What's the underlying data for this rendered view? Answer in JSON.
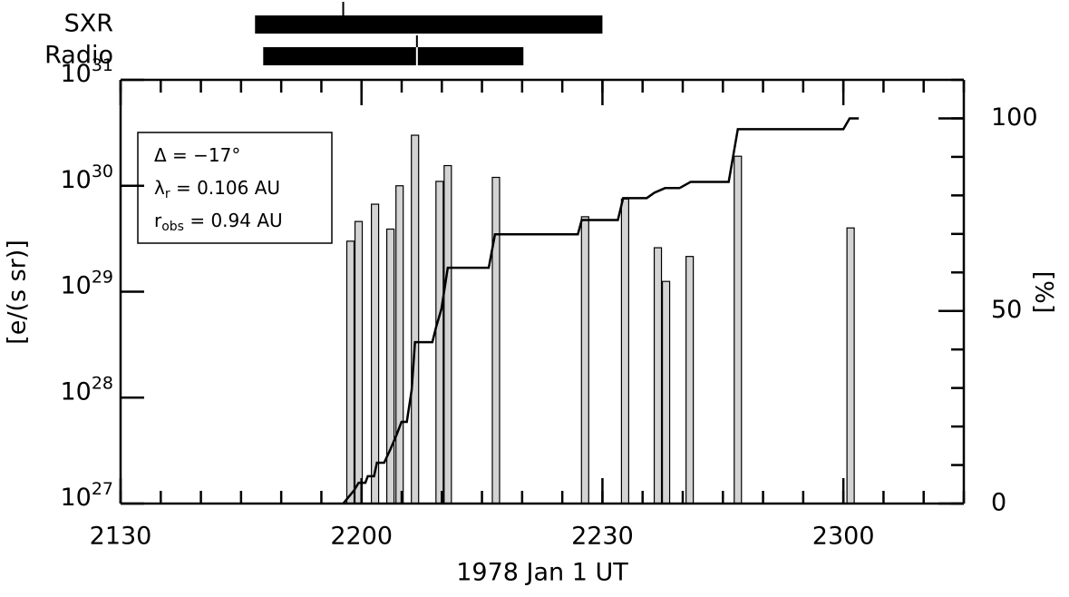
{
  "chart_data": {
    "type": "bar",
    "xlabel": "1978 Jan  1 UT",
    "ylabel": "[e/(s sr)]",
    "y2label": "[%]",
    "xlim": [
      21.5,
      23.25
    ],
    "xticks": [
      {
        "value": 21.5,
        "label": "2130"
      },
      {
        "value": 22,
        "label": "2200"
      },
      {
        "value": 22.5,
        "label": "2230"
      },
      {
        "value": 23,
        "label": "2300"
      }
    ],
    "ylim": [
      1e+27,
      1e+31
    ],
    "yscale": "log",
    "yticks": [
      {
        "value": 1e+27,
        "label": "10",
        "sup": "27"
      },
      {
        "value": 1e+28,
        "label": "10",
        "sup": "28"
      },
      {
        "value": 1e+29,
        "label": "10",
        "sup": "29"
      },
      {
        "value": 1e+30,
        "label": "10",
        "sup": "30"
      },
      {
        "value": 1e+31,
        "label": "10",
        "sup": "31"
      }
    ],
    "y2lim": [
      0,
      110
    ],
    "y2ticks": [
      0,
      50,
      100
    ],
    "series": [
      {
        "type": "bar",
        "color": "#d3d3d3",
        "x": [
          21.977,
          21.994,
          22.028,
          22.06,
          22.079,
          22.111,
          22.162,
          22.179,
          22.279,
          22.464,
          22.547,
          22.615,
          22.632,
          22.681,
          22.781,
          23.015
        ],
        "values": [
          3e+29,
          4.6e+29,
          6.7e+29,
          3.9e+29,
          1e+30,
          3e+30,
          1.1e+30,
          1.55e+30,
          1.2e+30,
          5.1e+29,
          7.5e+29,
          2.6e+29,
          1.25e+29,
          2.15e+29,
          1.9e+30,
          4e+29
        ]
      },
      {
        "type": "line",
        "axis": "y2",
        "color": "#000000",
        "x": [
          21.962,
          21.985,
          21.994,
          22.008,
          22.013,
          22.026,
          22.032,
          22.047,
          22.06,
          22.072,
          22.083,
          22.094,
          22.104,
          22.111,
          22.147,
          22.155,
          22.166,
          22.179,
          22.264,
          22.277,
          22.449,
          22.457,
          22.532,
          22.543,
          22.592,
          22.608,
          22.63,
          22.66,
          22.683,
          22.762,
          22.781,
          23.0,
          23.013,
          23.032
        ],
        "values": [
          0,
          3.5,
          5.4,
          5.4,
          7.1,
          7.1,
          10.6,
          10.6,
          14.1,
          17.6,
          21.2,
          21.2,
          29.4,
          41.9,
          41.9,
          45.9,
          50.6,
          61.2,
          61.2,
          69.9,
          69.9,
          73.6,
          73.6,
          79.3,
          79.3,
          80.7,
          81.9,
          81.9,
          83.5,
          83.5,
          97.2,
          97.2,
          100,
          100
        ]
      }
    ],
    "intervals": [
      {
        "name": "SXR",
        "start": 21.779,
        "end": 22.5,
        "peak": 21.962
      },
      {
        "name": "Radio",
        "start": 21.796,
        "end": 22.336,
        "peak": 22.115
      }
    ],
    "annotations": [
      {
        "text": "Δ = −17°"
      },
      {
        "text": "λ",
        "sub": "r",
        "rest": " = 0.106 AU"
      },
      {
        "text": "r",
        "sub": "obs",
        "rest": " = 0.94 AU"
      }
    ]
  }
}
